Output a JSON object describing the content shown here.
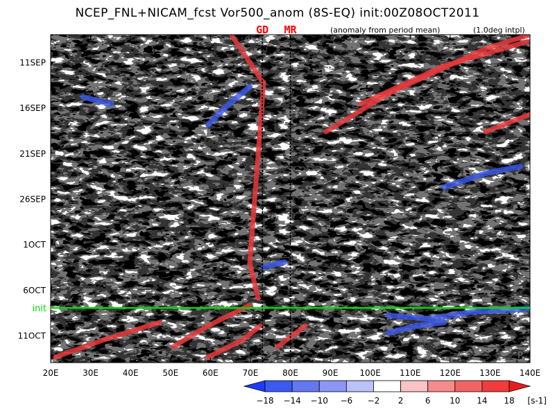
{
  "title": "NCEP_FNL+NICAM_fcst Vor500_anom (8S-EQ) init:00Z08OCT2011",
  "subtitle_left": "(anomaly from period mean)",
  "subtitle_right": "(1.0deg intpl)",
  "chart_data": {
    "type": "heatmap",
    "title": "NCEP_FNL+NICAM_fcst Vor500_anom (8S-EQ) init:00Z08OCT2011",
    "x_ticks": [
      "20E",
      "30E",
      "40E",
      "50E",
      "60E",
      "70E",
      "80E",
      "90E",
      "100E",
      "110E",
      "120E",
      "130E",
      "140E"
    ],
    "x_range": [
      20,
      140
    ],
    "y_ticks": [
      "11SEP",
      "16SEP",
      "21SEP",
      "26SEP",
      "1OCT",
      "6OCT",
      "11OCT"
    ],
    "y_range": [
      "08SEP2011",
      "14OCT2011"
    ],
    "reference_lines": [
      {
        "label": "GD",
        "lon": 73,
        "color": "#ff0000"
      },
      {
        "label": "MR",
        "lon": 80,
        "color": "#ff0000"
      }
    ],
    "init_line": {
      "label": "init",
      "date": "08OCT2011",
      "color": "#00dd00"
    },
    "colorbar": {
      "unit": "[s-1]",
      "tick_labels": [
        "−18",
        "−14",
        "−10",
        "−6",
        "−2",
        "2",
        "6",
        "10",
        "14",
        "18"
      ],
      "colors": [
        "#1e3cff",
        "#3c5af0",
        "#6478f0",
        "#8c96f5",
        "#b9c3fa",
        "#ffffff",
        "#fac3c3",
        "#f58c8c",
        "#f06464",
        "#f03c3c",
        "#e61e1e"
      ]
    }
  },
  "watermark_letter": "P"
}
